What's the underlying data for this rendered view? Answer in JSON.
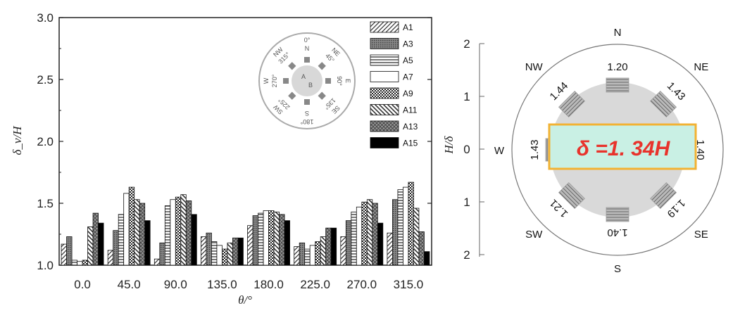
{
  "chart_data": [
    {
      "type": "bar",
      "xlabel": "θ/°",
      "ylabel": "δ_v/H",
      "ylim": [
        1.0,
        3.0
      ],
      "yticks": [
        "1.0",
        "1.5",
        "2.0",
        "2.5",
        "3.0"
      ],
      "categories": [
        "0.0",
        "45.0",
        "90.0",
        "135.0",
        "180.0",
        "225.0",
        "270.0",
        "315.0"
      ],
      "series": [
        {
          "name": "A1",
          "pattern": "diag-fwd",
          "values": [
            1.17,
            1.12,
            1.05,
            1.23,
            1.32,
            1.15,
            1.23,
            1.26
          ]
        },
        {
          "name": "A3",
          "pattern": "dense-gray",
          "values": [
            1.23,
            1.28,
            1.18,
            1.26,
            1.4,
            1.18,
            1.36,
            1.53
          ]
        },
        {
          "name": "A5",
          "pattern": "hlines",
          "values": [
            1.04,
            1.41,
            1.48,
            1.19,
            1.42,
            1.13,
            1.43,
            1.61
          ]
        },
        {
          "name": "A7",
          "pattern": "white",
          "values": [
            1.03,
            1.58,
            1.53,
            1.16,
            1.44,
            1.16,
            1.47,
            1.63
          ]
        },
        {
          "name": "A9",
          "pattern": "checker",
          "values": [
            1.04,
            1.63,
            1.55,
            1.13,
            1.44,
            1.19,
            1.51,
            1.67
          ]
        },
        {
          "name": "A11",
          "pattern": "diag-back",
          "values": [
            1.31,
            1.53,
            1.57,
            1.18,
            1.43,
            1.23,
            1.53,
            1.46
          ]
        },
        {
          "name": "A13",
          "pattern": "cross",
          "values": [
            1.42,
            1.5,
            1.52,
            1.22,
            1.41,
            1.3,
            1.5,
            1.27
          ]
        },
        {
          "name": "A15",
          "pattern": "black",
          "values": [
            1.34,
            1.36,
            1.41,
            1.22,
            1.36,
            1.3,
            1.34,
            1.11
          ]
        }
      ],
      "inset": {
        "center": [
          "A",
          "B"
        ],
        "labels": [
          "0°",
          "N",
          "NE",
          "45°",
          "E",
          "90°",
          "SE",
          "135°",
          "180°",
          "S",
          "SW",
          "225°",
          "W",
          "270°",
          "NW",
          "315°"
        ]
      }
    },
    {
      "type": "polar-diagram",
      "directions": [
        "N",
        "NE",
        "E",
        "SE",
        "S",
        "SW",
        "W",
        "NW"
      ],
      "values": [
        "1.20",
        "1.43",
        "1.40",
        "1.19",
        "1.40",
        "1.21",
        "1.43",
        "1.44"
      ],
      "axis_label": "H/δ",
      "yticks": [
        "2",
        "1",
        "0",
        "1",
        "2"
      ],
      "result": "δ =1. 34H"
    }
  ]
}
